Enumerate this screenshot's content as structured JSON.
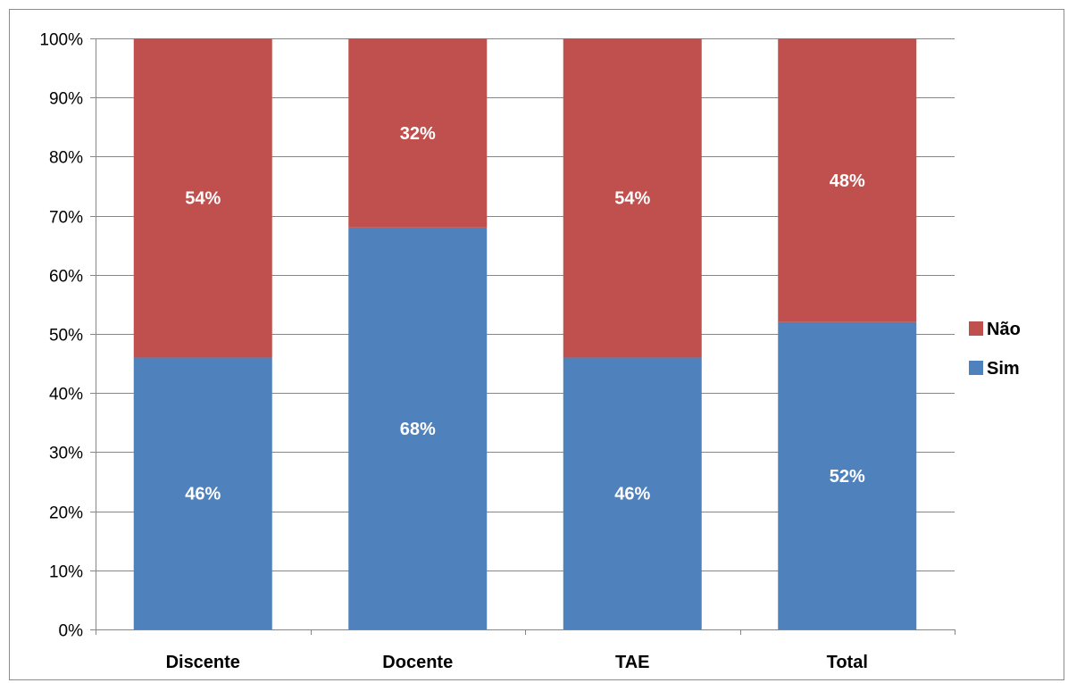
{
  "chart_data": {
    "type": "bar",
    "stacked": true,
    "categories": [
      "Discente",
      "Docente",
      "TAE",
      "Total"
    ],
    "series": [
      {
        "name": "Sim",
        "values": [
          46,
          68,
          46,
          52
        ],
        "labels": [
          "46%",
          "68%",
          "46%",
          "52%"
        ],
        "color": "#4F81BD"
      },
      {
        "name": "Não",
        "values": [
          54,
          32,
          54,
          48
        ],
        "labels": [
          "54%",
          "32%",
          "54%",
          "48%"
        ],
        "color": "#C0504D"
      }
    ],
    "ylim": [
      0,
      100
    ],
    "yticks": [
      0,
      10,
      20,
      30,
      40,
      50,
      60,
      70,
      80,
      90,
      100
    ],
    "ytick_labels": [
      "0%",
      "10%",
      "20%",
      "30%",
      "40%",
      "50%",
      "60%",
      "70%",
      "80%",
      "90%",
      "100%"
    ],
    "title": "",
    "xlabel": "",
    "ylabel": "",
    "grid": true,
    "legend": {
      "position": "right",
      "entries": [
        "Não",
        "Sim"
      ]
    }
  },
  "colors": {
    "gridline": "#868686",
    "axis": "#868686",
    "frame": "#8c8c8c"
  }
}
